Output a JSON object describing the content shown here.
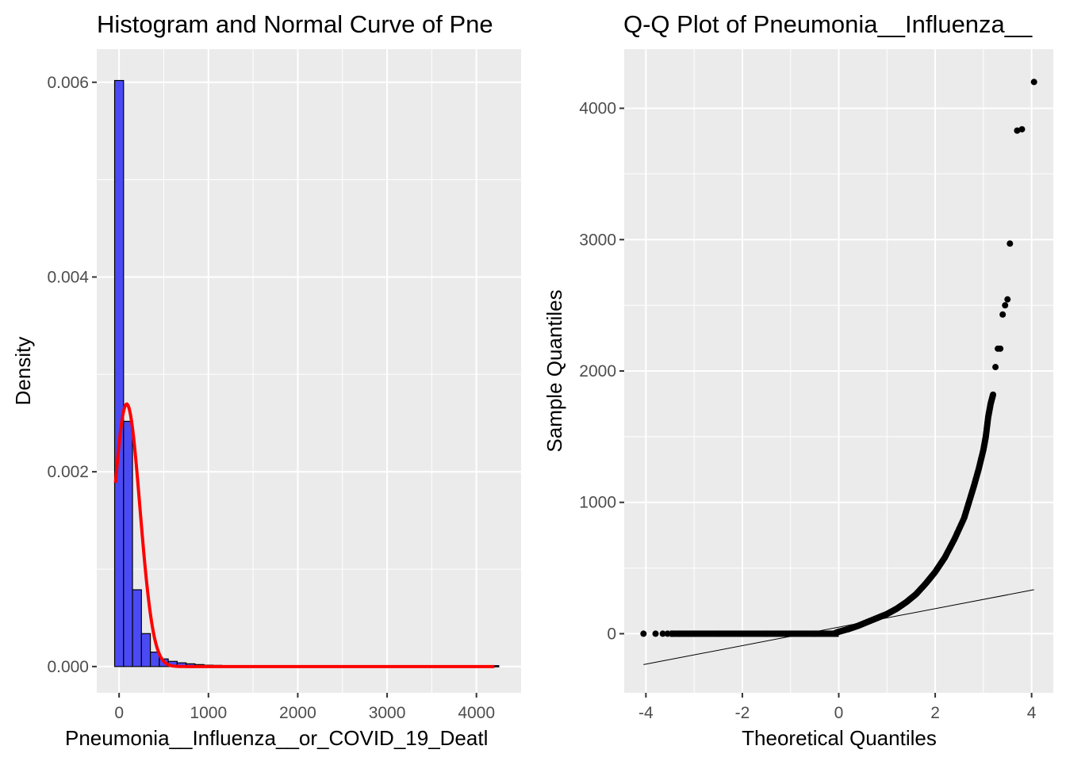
{
  "chart_data": [
    {
      "type": "bar",
      "title": "Histogram and Normal Curve of Pne",
      "xlabel": "Pneumonia__Influenza__or_COVID_19_Deatl",
      "ylabel": "Density",
      "xlim": [
        -250,
        4500
      ],
      "ylim": [
        -0.00027,
        0.00634
      ],
      "x_ticks": [
        0,
        1000,
        2000,
        3000,
        4000
      ],
      "x_tick_labels": [
        "0",
        "1000",
        "2000",
        "3000",
        "4000"
      ],
      "y_ticks": [
        0,
        0.002,
        0.004,
        0.006
      ],
      "y_tick_labels": [
        "0.000",
        "0.002",
        "0.004",
        "0.006"
      ],
      "grid": true,
      "bar_width": 100,
      "bar_fill": "#4a4af5",
      "bar_outline": "#000000",
      "bins": [
        {
          "x0": -50,
          "value": 0.00601
        },
        {
          "x0": 50,
          "value": 0.00251
        },
        {
          "x0": 150,
          "value": 0.00078
        },
        {
          "x0": 250,
          "value": 0.00033
        },
        {
          "x0": 350,
          "value": 0.00014
        },
        {
          "x0": 450,
          "value": 7e-05
        },
        {
          "x0": 550,
          "value": 4.5e-05
        },
        {
          "x0": 650,
          "value": 3e-05
        },
        {
          "x0": 750,
          "value": 2e-05
        },
        {
          "x0": 850,
          "value": 1.2e-05
        },
        {
          "x0": 950,
          "value": 6e-06
        },
        {
          "x0": 1050,
          "value": 4e-06
        },
        {
          "x0": 1150,
          "value": 2e-06
        },
        {
          "x0": 1250,
          "value": 1e-06
        },
        {
          "x0": 1350,
          "value": 1e-06
        },
        {
          "x0": 4150,
          "value": 1e-06
        }
      ],
      "normal_curve": {
        "mean": 85,
        "sd": 148,
        "x_range": [
          -40,
          4200
        ],
        "color": "#ff0000"
      }
    },
    {
      "type": "scatter",
      "title": "Q-Q Plot of Pneumonia__Influenza__",
      "xlabel": "Theoretical Quantiles",
      "ylabel": "Sample Quantiles",
      "xlim": [
        -4.45,
        4.45
      ],
      "ylim": [
        -450,
        4450
      ],
      "x_ticks": [
        -4,
        -2,
        0,
        2,
        4
      ],
      "x_tick_labels": [
        "-4",
        "-2",
        "0",
        "2",
        "4"
      ],
      "y_ticks": [
        0,
        1000,
        2000,
        3000,
        4000
      ],
      "y_tick_labels": [
        "0",
        "1000",
        "2000",
        "3000",
        "4000"
      ],
      "grid": true,
      "point_color": "#000000",
      "reference_line": {
        "x": [
          -4.05,
          4.05
        ],
        "y": [
          -235,
          335
        ]
      },
      "points": [
        [
          -4.05,
          0
        ],
        [
          -3.8,
          0
        ],
        [
          -3.65,
          0
        ],
        [
          -3.55,
          0
        ],
        [
          -3.45,
          0
        ],
        [
          -3.3,
          0
        ],
        [
          -3.0,
          0
        ],
        [
          -2.5,
          0
        ],
        [
          -2.0,
          0
        ],
        [
          -1.5,
          0
        ],
        [
          -1.0,
          0
        ],
        [
          -0.5,
          0
        ],
        [
          -0.1,
          0
        ],
        [
          0.0,
          15
        ],
        [
          0.2,
          35
        ],
        [
          0.4,
          60
        ],
        [
          0.6,
          90
        ],
        [
          0.8,
          120
        ],
        [
          1.0,
          150
        ],
        [
          1.2,
          190
        ],
        [
          1.4,
          240
        ],
        [
          1.6,
          300
        ],
        [
          1.8,
          380
        ],
        [
          2.0,
          470
        ],
        [
          2.2,
          580
        ],
        [
          2.4,
          720
        ],
        [
          2.6,
          880
        ],
        [
          2.7,
          1000
        ],
        [
          2.8,
          1120
        ],
        [
          2.9,
          1250
        ],
        [
          3.0,
          1400
        ],
        [
          3.05,
          1500
        ],
        [
          3.1,
          1650
        ],
        [
          3.15,
          1750
        ],
        [
          3.2,
          1820
        ],
        [
          3.25,
          2030
        ],
        [
          3.3,
          2170
        ],
        [
          3.35,
          2170
        ],
        [
          3.4,
          2430
        ],
        [
          3.45,
          2500
        ],
        [
          3.5,
          2545
        ],
        [
          3.55,
          2970
        ],
        [
          3.7,
          3830
        ],
        [
          3.8,
          3840
        ],
        [
          4.05,
          4200
        ]
      ]
    }
  ]
}
